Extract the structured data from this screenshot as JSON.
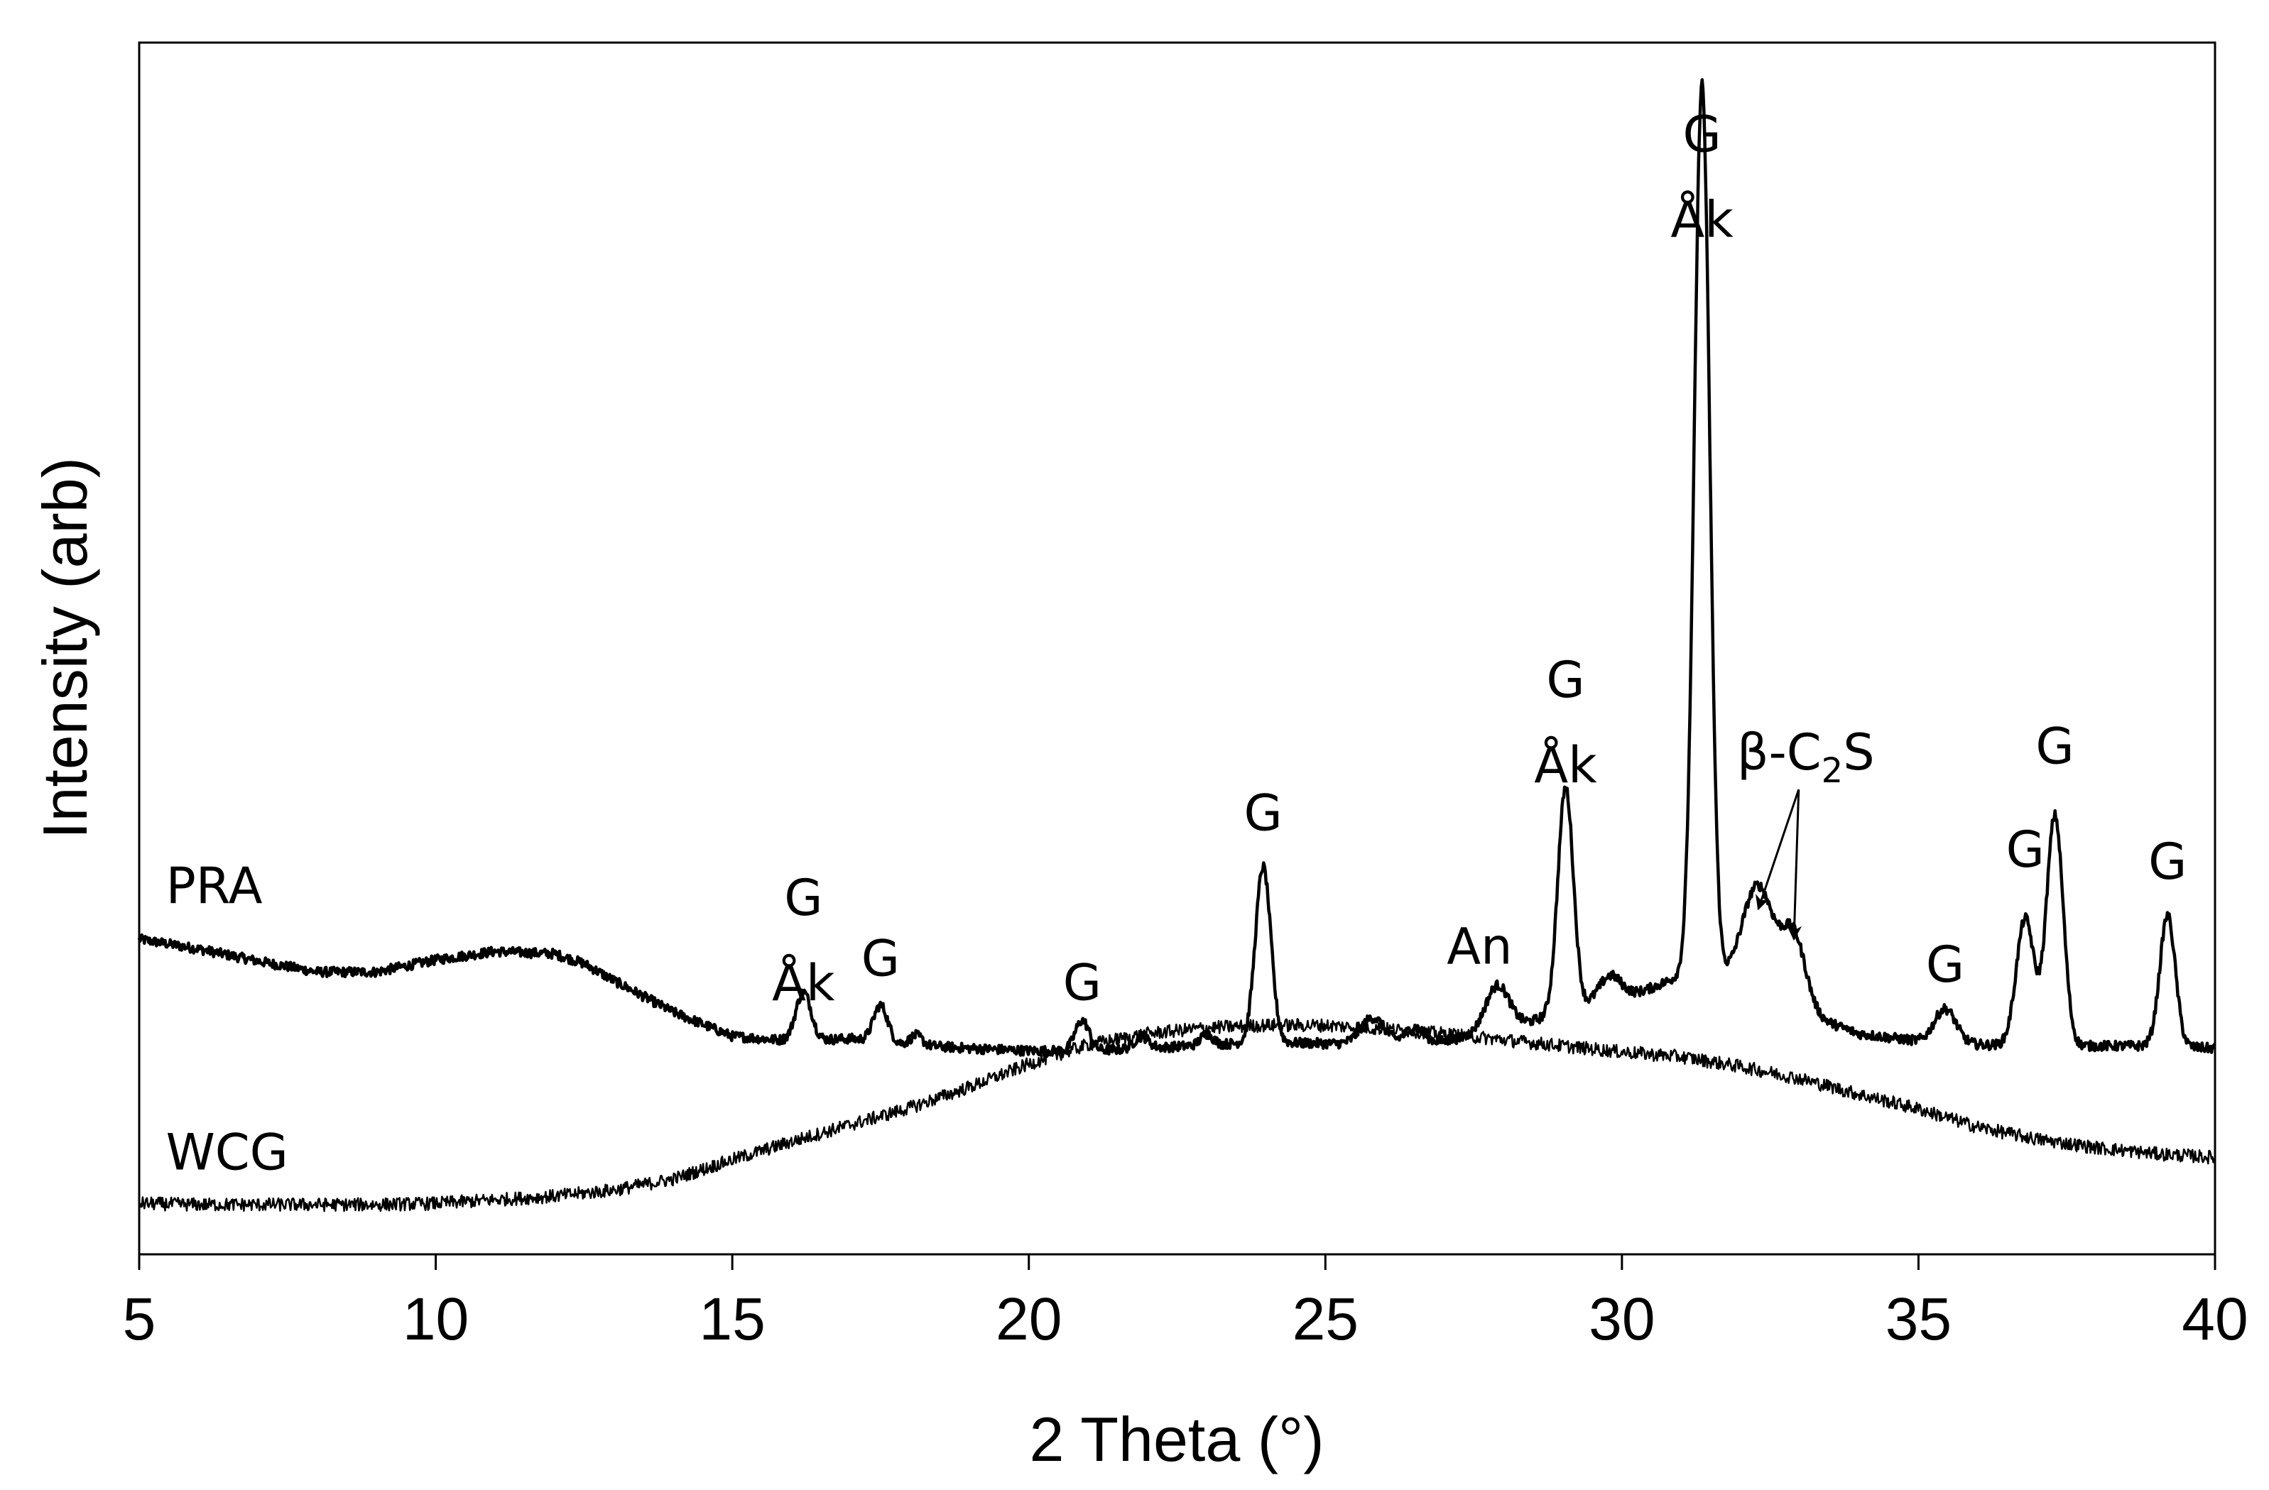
{
  "chart_data": {
    "type": "line",
    "xlabel": "2 Theta (°)",
    "ylabel": "Intensity (arb)",
    "xlim": [
      5,
      40
    ],
    "x_ticks": [
      "5",
      "10",
      "15",
      "20",
      "25",
      "30",
      "35",
      "40"
    ],
    "y_ticks_shown": false,
    "grid": false,
    "legend": "none",
    "line_color": "#000000",
    "ylim": [
      0,
      100
    ],
    "series": [
      {
        "name": "PRA",
        "baseline": [
          [
            5,
            26
          ],
          [
            6,
            25.2
          ],
          [
            7,
            24.2
          ],
          [
            8,
            23.3
          ],
          [
            9,
            23.3
          ],
          [
            10,
            24.3
          ],
          [
            11,
            25
          ],
          [
            12,
            24.8
          ],
          [
            12.5,
            24
          ],
          [
            13,
            22.6
          ],
          [
            14,
            20
          ],
          [
            15,
            18
          ],
          [
            16,
            17.6
          ],
          [
            17,
            17.8
          ],
          [
            18,
            17.3
          ],
          [
            19,
            17
          ],
          [
            20,
            16.8
          ],
          [
            21,
            16.8
          ],
          [
            22,
            17
          ],
          [
            23,
            17.3
          ],
          [
            24,
            17.5
          ],
          [
            25,
            17.4
          ],
          [
            26,
            17.3
          ],
          [
            27,
            17.6
          ],
          [
            28,
            18.5
          ],
          [
            29,
            20
          ],
          [
            30,
            21
          ],
          [
            30.5,
            22
          ],
          [
            31,
            23
          ],
          [
            31.3,
            23.2
          ],
          [
            32,
            22.5
          ],
          [
            32.5,
            21.5
          ],
          [
            33,
            20
          ],
          [
            34,
            18.2
          ],
          [
            35,
            17.6
          ],
          [
            36,
            17.3
          ],
          [
            37,
            17.2
          ],
          [
            38,
            17.2
          ],
          [
            39,
            17.2
          ],
          [
            40,
            17
          ]
        ],
        "peaks": [
          {
            "x": 16.2,
            "height": 4,
            "width": 0.13
          },
          {
            "x": 17.5,
            "height": 3,
            "width": 0.12
          },
          {
            "x": 18.1,
            "height": 0.8,
            "width": 0.1
          },
          {
            "x": 20.9,
            "height": 2.5,
            "width": 0.12
          },
          {
            "x": 21.9,
            "height": 1,
            "width": 0.12
          },
          {
            "x": 23.0,
            "height": 0.9,
            "width": 0.1
          },
          {
            "x": 23.95,
            "height": 14.5,
            "width": 0.13
          },
          {
            "x": 25.8,
            "height": 2.2,
            "width": 0.2
          },
          {
            "x": 26.5,
            "height": 1.3,
            "width": 0.15
          },
          {
            "x": 27.9,
            "height": 3.8,
            "width": 0.2
          },
          {
            "x": 29.05,
            "height": 18.5,
            "width": 0.13
          },
          {
            "x": 29.8,
            "height": 2.2,
            "width": 0.2
          },
          {
            "x": 31.35,
            "height": 73.5,
            "width": 0.13
          },
          {
            "x": 32.3,
            "height": 8.5,
            "width": 0.26
          },
          {
            "x": 32.9,
            "height": 6,
            "width": 0.2
          },
          {
            "x": 35.45,
            "height": 2.8,
            "width": 0.18
          },
          {
            "x": 36.8,
            "height": 10.5,
            "width": 0.15
          },
          {
            "x": 37.3,
            "height": 19,
            "width": 0.14
          },
          {
            "x": 39.2,
            "height": 10.8,
            "width": 0.13
          }
        ],
        "noise": 0.4
      },
      {
        "name": "WCG",
        "baseline": [
          [
            5,
            4.2
          ],
          [
            6,
            4.1
          ],
          [
            7,
            4.1
          ],
          [
            8,
            4.1
          ],
          [
            9,
            4.1
          ],
          [
            10,
            4.2
          ],
          [
            11,
            4.5
          ],
          [
            12,
            4.8
          ],
          [
            13,
            5.3
          ],
          [
            14,
            6.2
          ],
          [
            15,
            7.8
          ],
          [
            16,
            9.3
          ],
          [
            17,
            10.7
          ],
          [
            18,
            12.1
          ],
          [
            19,
            13.8
          ],
          [
            20,
            15.7
          ],
          [
            21,
            17.3
          ],
          [
            22,
            18.2
          ],
          [
            23,
            18.7
          ],
          [
            24,
            18.9
          ],
          [
            25,
            18.9
          ],
          [
            26,
            18.6
          ],
          [
            27,
            18.2
          ],
          [
            28,
            17.7
          ],
          [
            29,
            17.2
          ],
          [
            30,
            16.7
          ],
          [
            31,
            16.3
          ],
          [
            32,
            15.5
          ],
          [
            33,
            14.5
          ],
          [
            34,
            13.2
          ],
          [
            35,
            12
          ],
          [
            36,
            10.5
          ],
          [
            37,
            9.5
          ],
          [
            38,
            8.8
          ],
          [
            39,
            8.3
          ],
          [
            40,
            8
          ]
        ],
        "peaks": [],
        "noise": 0.55
      }
    ],
    "annotations": [
      {
        "lines": [
          "G",
          "Åk"
        ],
        "x": 16.2,
        "y": 28
      },
      {
        "lines": [
          "G"
        ],
        "x": 17.5,
        "y": 23
      },
      {
        "lines": [
          "G"
        ],
        "x": 20.9,
        "y": 21
      },
      {
        "lines": [
          "G"
        ],
        "x": 23.95,
        "y": 35
      },
      {
        "lines": [
          "An"
        ],
        "x": 27.6,
        "y": 24
      },
      {
        "lines": [
          "G",
          "Åk"
        ],
        "x": 29.05,
        "y": 46
      },
      {
        "lines": [
          "G",
          "Åk"
        ],
        "x": 31.35,
        "y": 91
      },
      {
        "lines": [
          "G"
        ],
        "x": 35.45,
        "y": 22.5
      },
      {
        "lines": [
          "G"
        ],
        "x": 36.8,
        "y": 32
      },
      {
        "lines": [
          "G"
        ],
        "x": 37.3,
        "y": 40.5
      },
      {
        "lines": [
          "G"
        ],
        "x": 39.2,
        "y": 31
      }
    ],
    "beta_c2s": {
      "label": "β-C",
      "subscript": "2",
      "suffix": "S",
      "x": 33.1,
      "y": 40,
      "arrows_to": [
        [
          32.3,
          28.5
        ],
        [
          32.9,
          26
        ]
      ]
    },
    "series_labels": [
      {
        "text": "PRA",
        "x": 5.45,
        "y": 29
      },
      {
        "text": "WCG",
        "x": 5.45,
        "y": 7
      }
    ]
  }
}
